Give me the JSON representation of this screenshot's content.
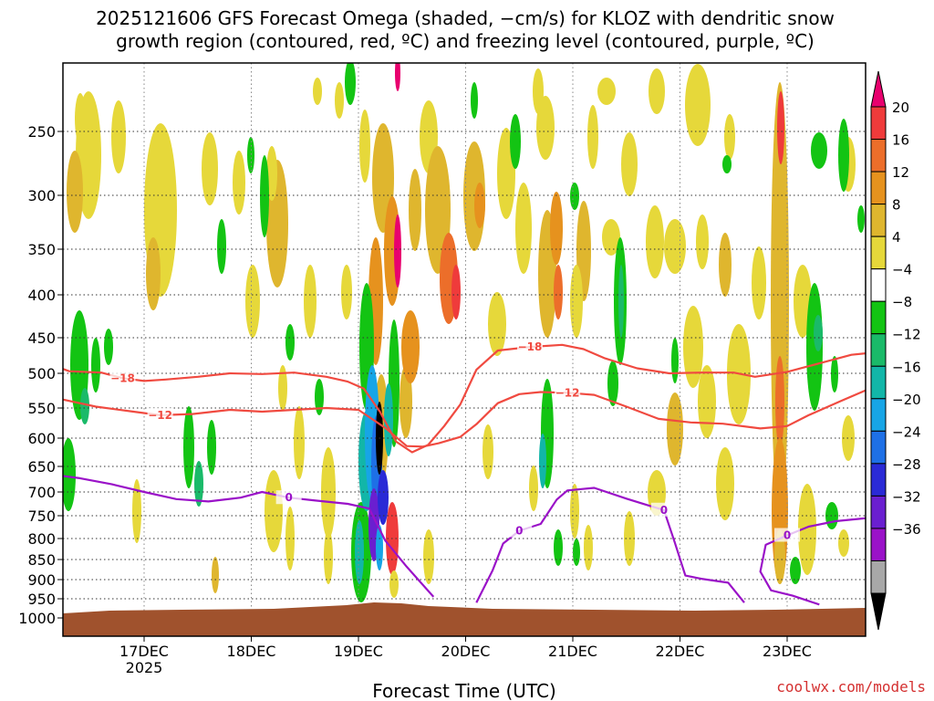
{
  "chart_data": {
    "type": "heatmap",
    "title_line1": "2025121606 GFS Forecast Omega (shaded, −cm/s) for KLOZ with dendritic snow",
    "title_line2": "growth region (contoured, red, ºC) and freezing level (contoured, purple, ºC)",
    "xlabel": "Forecast Time (UTC)",
    "credit": "coolwx.com/models",
    "year_label": "2025",
    "x_ticks": [
      {
        "label": "17DEC",
        "value": 1.0
      },
      {
        "label": "18DEC",
        "value": 2.0
      },
      {
        "label": "19DEC",
        "value": 3.0
      },
      {
        "label": "20DEC",
        "value": 4.0
      },
      {
        "label": "21DEC",
        "value": 5.0
      },
      {
        "label": "22DEC",
        "value": 6.0
      },
      {
        "label": "23DEC",
        "value": 7.0
      }
    ],
    "xlim": [
      -0.75,
      6.75
    ],
    "y_ticks": [
      250,
      300,
      350,
      400,
      450,
      500,
      550,
      600,
      650,
      700,
      750,
      800,
      850,
      900,
      950,
      1000
    ],
    "ylim_hPa": [
      200,
      1040
    ],
    "colorbar": {
      "labels": [
        "20",
        "16",
        "12",
        "8",
        "4",
        "−4",
        "−8",
        "−12",
        "−16",
        "−20",
        "−24",
        "−28",
        "−32",
        "−36"
      ],
      "colors": [
        "#e8006e",
        "#ef3b3b",
        "#ec6e2a",
        "#e6921e",
        "#dfb62e",
        "#e6d83a",
        "#ffffff",
        "#13c413",
        "#1aba69",
        "#12b6a8",
        "#17a5e6",
        "#1e70e6",
        "#2a2ad6",
        "#6a1fd0",
        "#9a12c8",
        "#a8a8a8",
        "#000000"
      ]
    },
    "series": [
      {
        "name": "-18 °C DGZ top",
        "color": "#f04a40",
        "label": "−18",
        "points": [
          [
            -0.75,
            508
          ],
          [
            -0.55,
            498
          ],
          [
            -0.3,
            490
          ],
          [
            -0.1,
            486
          ],
          [
            0.1,
            486
          ],
          [
            0.3,
            497
          ],
          [
            0.6,
            499
          ],
          [
            0.8,
            507
          ],
          [
            1.0,
            511
          ],
          [
            1.2,
            509
          ],
          [
            1.5,
            505
          ],
          [
            1.8,
            500
          ],
          [
            2.1,
            501
          ],
          [
            2.4,
            499
          ],
          [
            2.7,
            505
          ],
          [
            2.9,
            512
          ],
          [
            3.05,
            522
          ],
          [
            3.2,
            556
          ],
          [
            3.35,
            606
          ],
          [
            3.5,
            625
          ],
          [
            3.65,
            612
          ],
          [
            3.8,
            580
          ],
          [
            3.95,
            545
          ],
          [
            4.1,
            495
          ],
          [
            4.3,
            468
          ],
          [
            4.6,
            463
          ],
          [
            4.9,
            460
          ],
          [
            5.1,
            466
          ],
          [
            5.3,
            479
          ],
          [
            5.6,
            493
          ],
          [
            5.9,
            500
          ],
          [
            6.2,
            499
          ],
          [
            6.5,
            499
          ],
          [
            6.7,
            505
          ],
          [
            7.0,
            498
          ],
          [
            7.3,
            486
          ],
          [
            7.6,
            474
          ],
          [
            8.0,
            468
          ],
          [
            8.3,
            468
          ]
        ]
      },
      {
        "name": "-12 °C DGZ bottom",
        "color": "#f04a40",
        "label": "−12",
        "points": [
          [
            -0.75,
            548
          ],
          [
            -0.5,
            542
          ],
          [
            -0.25,
            533
          ],
          [
            0.0,
            532
          ],
          [
            0.25,
            538
          ],
          [
            0.55,
            548
          ],
          [
            0.9,
            556
          ],
          [
            1.15,
            562
          ],
          [
            1.45,
            560
          ],
          [
            1.8,
            553
          ],
          [
            2.1,
            556
          ],
          [
            2.4,
            553
          ],
          [
            2.7,
            550
          ],
          [
            3.0,
            553
          ],
          [
            3.25,
            583
          ],
          [
            3.45,
            614
          ],
          [
            3.6,
            615
          ],
          [
            3.75,
            609
          ],
          [
            3.95,
            598
          ],
          [
            4.1,
            577
          ],
          [
            4.3,
            543
          ],
          [
            4.5,
            530
          ],
          [
            4.7,
            527
          ],
          [
            4.95,
            528
          ],
          [
            5.2,
            531
          ],
          [
            5.5,
            548
          ],
          [
            5.8,
            568
          ],
          [
            6.1,
            574
          ],
          [
            6.4,
            576
          ],
          [
            6.75,
            584
          ],
          [
            7.0,
            580
          ],
          [
            7.2,
            562
          ],
          [
            7.5,
            540
          ],
          [
            7.8,
            520
          ],
          [
            8.0,
            516
          ],
          [
            8.3,
            516
          ]
        ]
      },
      {
        "name": "0 °C freezing level A",
        "color": "#9a12c8",
        "label": "0",
        "points": [
          [
            -0.75,
            700
          ],
          [
            -0.5,
            685
          ],
          [
            -0.25,
            665
          ],
          [
            -0.05,
            659
          ],
          [
            0.1,
            665
          ],
          [
            0.4,
            673
          ],
          [
            0.7,
            685
          ],
          [
            1.0,
            700
          ],
          [
            1.3,
            715
          ],
          [
            1.6,
            720
          ],
          [
            1.9,
            712
          ],
          [
            2.1,
            700
          ],
          [
            2.35,
            712
          ],
          [
            2.6,
            718
          ],
          [
            2.9,
            725
          ],
          [
            3.1,
            735
          ],
          [
            3.25,
            805
          ],
          [
            3.45,
            868
          ],
          [
            3.7,
            945
          ]
        ]
      },
      {
        "name": "0 °C freezing level B",
        "color": "#9a12c8",
        "label": "0",
        "points": [
          [
            4.1,
            960
          ],
          [
            4.25,
            878
          ],
          [
            4.35,
            812
          ],
          [
            4.5,
            783
          ],
          [
            4.7,
            768
          ],
          [
            4.85,
            716
          ],
          [
            4.95,
            697
          ],
          [
            5.2,
            692
          ],
          [
            5.5,
            714
          ],
          [
            5.7,
            728
          ],
          [
            5.85,
            738
          ],
          [
            5.95,
            808
          ],
          [
            6.05,
            890
          ],
          [
            6.2,
            898
          ],
          [
            6.45,
            908
          ],
          [
            6.6,
            960
          ]
        ]
      },
      {
        "name": "0 °C freezing level C",
        "color": "#9a12c8",
        "label": "0",
        "points": [
          [
            7.3,
            965
          ],
          [
            7.05,
            942
          ],
          [
            6.85,
            928
          ],
          [
            6.75,
            880
          ],
          [
            6.8,
            815
          ],
          [
            7.0,
            793
          ],
          [
            7.2,
            774
          ],
          [
            7.45,
            762
          ],
          [
            7.75,
            755
          ],
          [
            8.0,
            747
          ],
          [
            8.3,
            745
          ]
        ]
      },
      {
        "name": "0 °C freezing level D",
        "color": "#9a12c8",
        "label": "",
        "points": [
          [
            -0.75,
            902
          ],
          [
            -0.55,
            895
          ],
          [
            -0.45,
            915
          ],
          [
            -0.4,
            955
          ],
          [
            -0.3,
            975
          ]
        ]
      }
    ]
  }
}
